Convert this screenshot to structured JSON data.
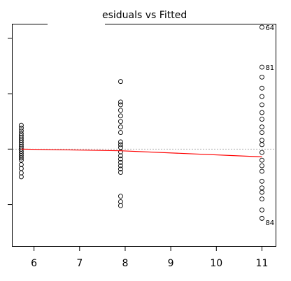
{
  "chart_data": {
    "type": "scatter",
    "title": "esiduals vs Fitted",
    "xlabel": "",
    "ylabel": "",
    "xlim": [
      5.53,
      11.3
    ],
    "ylim": [
      -1.75,
      2.25
    ],
    "xticks": [
      6,
      7,
      8,
      9,
      10,
      11
    ],
    "xtick_labels": [
      "6",
      "7",
      "8",
      "9",
      "10",
      "11"
    ],
    "yticks": [
      -1,
      0,
      1,
      2
    ],
    "ytick_labels": [],
    "zero_line": 0,
    "grid": false,
    "smooth_line": {
      "color": "#ff0000",
      "x": [
        5.72,
        7.9,
        11.0
      ],
      "y": [
        0.0,
        -0.03,
        -0.14
      ]
    },
    "series": [
      {
        "x": 5.72,
        "y": [
          0.43,
          0.38,
          0.33,
          0.28,
          0.24,
          0.2,
          0.16,
          0.12,
          0.08,
          0.04,
          0.0,
          -0.04,
          -0.08,
          -0.12,
          -0.16,
          -0.2,
          -0.28,
          -0.35,
          -0.43,
          -0.5
        ]
      },
      {
        "x": 7.9,
        "y": [
          1.22,
          0.85,
          0.8,
          0.7,
          0.6,
          0.5,
          0.4,
          0.3,
          0.13,
          0.08,
          0.03,
          -0.05,
          -0.12,
          -0.18,
          -0.24,
          -0.3,
          -0.36,
          -0.42,
          -0.85,
          -0.95,
          -1.02
        ]
      },
      {
        "x": 11.0,
        "y": [
          2.2,
          1.48,
          1.3,
          1.1,
          0.95,
          0.8,
          0.66,
          0.54,
          0.4,
          0.3,
          0.16,
          0.08,
          -0.06,
          -0.2,
          -0.3,
          -0.4,
          -0.58,
          -0.7,
          -0.78,
          -0.9,
          -1.1,
          -1.25
        ]
      }
    ],
    "point_labels": [
      {
        "x": 11.0,
        "y": 2.2,
        "text": "64"
      },
      {
        "x": 11.0,
        "y": 1.48,
        "text": "81"
      },
      {
        "x": 11.0,
        "y": -1.32,
        "text": "84"
      }
    ]
  }
}
